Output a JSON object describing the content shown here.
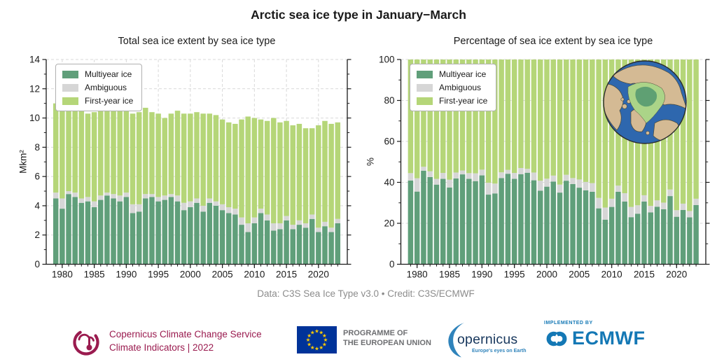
{
  "title": "Arctic sea ice type in January−March",
  "footer": {
    "text": "Data: C3S Sea Ice Type v3.0 • Credit: C3S/ECMWF"
  },
  "legend": {
    "items": [
      {
        "label": "Multiyear ice",
        "color": "#609f7a"
      },
      {
        "label": "Ambiguous",
        "color": "#d6d6d6"
      },
      {
        "label": "First-year ice",
        "color": "#b5d678"
      }
    ]
  },
  "chart_data": [
    {
      "type": "bar",
      "stacked": true,
      "title": "Total sea ice extent by sea ice type",
      "ylabel": "Mkm²",
      "xlabel": "",
      "ylim": [
        0,
        14
      ],
      "yticks": [
        0,
        2,
        4,
        6,
        8,
        10,
        12,
        14
      ],
      "yticks_minor": [
        1,
        3,
        5,
        7,
        9,
        11,
        13
      ],
      "xticks": [
        1980,
        1985,
        1990,
        1995,
        2000,
        2005,
        2010,
        2015,
        2020
      ],
      "grid": true,
      "legend_position": "upper left",
      "years": [
        1979,
        1980,
        1981,
        1982,
        1983,
        1984,
        1985,
        1986,
        1987,
        1988,
        1989,
        1990,
        1991,
        1992,
        1993,
        1994,
        1995,
        1996,
        1997,
        1998,
        1999,
        2000,
        2001,
        2002,
        2003,
        2004,
        2005,
        2006,
        2007,
        2008,
        2009,
        2010,
        2011,
        2012,
        2013,
        2014,
        2015,
        2016,
        2017,
        2018,
        2019,
        2020,
        2021,
        2022,
        2023
      ],
      "series": [
        {
          "name": "Multiyear ice",
          "color": "#609f7a",
          "values": [
            4.5,
            3.8,
            4.8,
            4.6,
            4.2,
            4.3,
            3.9,
            4.4,
            4.7,
            4.5,
            4.3,
            4.6,
            3.5,
            3.6,
            4.5,
            4.6,
            4.3,
            4.4,
            4.6,
            4.3,
            3.7,
            3.9,
            4.2,
            3.6,
            4.2,
            4.0,
            3.7,
            3.5,
            3.4,
            2.7,
            2.2,
            2.8,
            3.5,
            3.0,
            2.3,
            2.4,
            3.0,
            2.4,
            2.7,
            2.5,
            3.1,
            2.2,
            2.6,
            2.2,
            2.8
          ]
        },
        {
          "name": "Ambiguous",
          "color": "#d6d6d6",
          "values": [
            0.4,
            0.7,
            0.2,
            0.3,
            0.3,
            0.3,
            0.4,
            0.3,
            0.2,
            0.3,
            0.4,
            0.3,
            0.6,
            0.5,
            0.3,
            0.2,
            0.3,
            0.3,
            0.2,
            0.4,
            0.5,
            0.4,
            0.3,
            0.4,
            0.3,
            0.3,
            0.4,
            0.4,
            0.4,
            0.5,
            0.6,
            0.4,
            0.3,
            0.4,
            0.5,
            0.4,
            0.3,
            0.3,
            0.3,
            0.3,
            0.3,
            0.3,
            0.3,
            0.3,
            0.3
          ]
        },
        {
          "name": "First-year ice",
          "color": "#b5d678",
          "values": [
            6.1,
            6.2,
            5.5,
            5.9,
            6.3,
            5.7,
            6.1,
            5.8,
            5.8,
            6.0,
            5.9,
            5.7,
            6.2,
            6.3,
            5.9,
            5.6,
            5.7,
            5.3,
            5.5,
            5.8,
            6.1,
            6.0,
            5.9,
            6.3,
            5.8,
            5.9,
            5.8,
            5.8,
            5.8,
            6.7,
            7.3,
            6.8,
            6.1,
            6.4,
            7.2,
            6.9,
            6.5,
            6.8,
            6.6,
            6.5,
            5.9,
            7.0,
            6.9,
            7.1,
            6.6
          ]
        }
      ]
    },
    {
      "type": "bar",
      "stacked": true,
      "title": "Percentage of sea ice extent by sea ice type",
      "ylabel": "%",
      "xlabel": "",
      "ylim": [
        0,
        100
      ],
      "yticks": [
        0,
        20,
        40,
        60,
        80,
        100
      ],
      "yticks_minor": [
        10,
        30,
        50,
        70,
        90
      ],
      "xticks": [
        1980,
        1985,
        1990,
        1995,
        2000,
        2005,
        2010,
        2015,
        2020
      ],
      "grid": true,
      "legend_position": "upper left",
      "years": [
        1979,
        1980,
        1981,
        1982,
        1983,
        1984,
        1985,
        1986,
        1987,
        1988,
        1989,
        1990,
        1991,
        1992,
        1993,
        1994,
        1995,
        1996,
        1997,
        1998,
        1999,
        2000,
        2001,
        2002,
        2003,
        2004,
        2005,
        2006,
        2007,
        2008,
        2009,
        2010,
        2011,
        2012,
        2013,
        2014,
        2015,
        2016,
        2017,
        2018,
        2019,
        2020,
        2021,
        2022,
        2023
      ],
      "series": [
        {
          "name": "Multiyear ice",
          "color": "#609f7a",
          "values": [
            40.9,
            35.5,
            45.7,
            42.6,
            38.9,
            41.7,
            37.5,
            41.9,
            43.9,
            41.7,
            40.6,
            43.4,
            34.0,
            34.6,
            42.1,
            44.2,
            41.7,
            44.0,
            44.7,
            41.0,
            35.9,
            37.9,
            40.4,
            35.0,
            40.8,
            39.2,
            37.4,
            36.1,
            35.4,
            27.3,
            21.8,
            28.0,
            35.4,
            30.6,
            23.0,
            24.7,
            30.6,
            25.3,
            28.1,
            26.9,
            33.3,
            23.2,
            26.5,
            22.9,
            28.9
          ]
        },
        {
          "name": "Ambiguous",
          "color": "#d6d6d6",
          "values": [
            3.6,
            6.5,
            1.9,
            2.8,
            2.8,
            2.9,
            3.8,
            2.9,
            1.9,
            2.8,
            3.8,
            2.8,
            5.8,
            4.8,
            2.8,
            1.9,
            2.9,
            3.0,
            1.9,
            3.8,
            4.9,
            3.9,
            2.9,
            3.9,
            2.9,
            2.9,
            4.0,
            4.1,
            4.2,
            5.1,
            5.9,
            4.0,
            3.0,
            4.1,
            5.0,
            4.1,
            3.1,
            3.2,
            3.1,
            3.2,
            3.2,
            3.2,
            3.1,
            3.1,
            3.1
          ]
        },
        {
          "name": "First-year ice",
          "color": "#b5d678",
          "values": [
            55.5,
            58.0,
            52.4,
            54.6,
            58.3,
            55.4,
            58.7,
            55.2,
            54.2,
            55.5,
            55.6,
            53.8,
            60.2,
            60.6,
            55.1,
            53.9,
            55.4,
            53.0,
            53.4,
            55.2,
            59.2,
            58.2,
            56.7,
            61.1,
            56.3,
            57.9,
            58.6,
            59.8,
            60.4,
            67.6,
            72.3,
            68.0,
            61.6,
            65.3,
            72.0,
            71.2,
            66.3,
            71.5,
            68.8,
            69.9,
            63.5,
            73.6,
            70.4,
            74.0,
            68.0
          ]
        }
      ]
    }
  ],
  "inset": {
    "ocean": "#2e67ae",
    "land": "#d4ba94",
    "first_year_ice": "#abd488",
    "multiyear_ice": "#5fa073"
  },
  "logos": {
    "c3s": {
      "line1": "Copernicus Climate Change Service",
      "line2": "Climate Indicators | 2022",
      "color": "#9a1b4f"
    },
    "eu": {
      "line1": "PROGRAMME OF",
      "line2": "THE EUROPEAN UNION",
      "flag_blue": "#003399",
      "star_yellow": "#ffcc00",
      "text_color": "#6d6e71"
    },
    "copernicus": {
      "wordmark": "opernicus",
      "tagline": "Europe's eyes on Earth",
      "navy": "#16365c",
      "blue": "#2f83bb"
    },
    "ecmwf": {
      "implemented_by": "IMPLEMENTED BY",
      "name": "ECMWF",
      "blue": "#1478b5"
    }
  }
}
